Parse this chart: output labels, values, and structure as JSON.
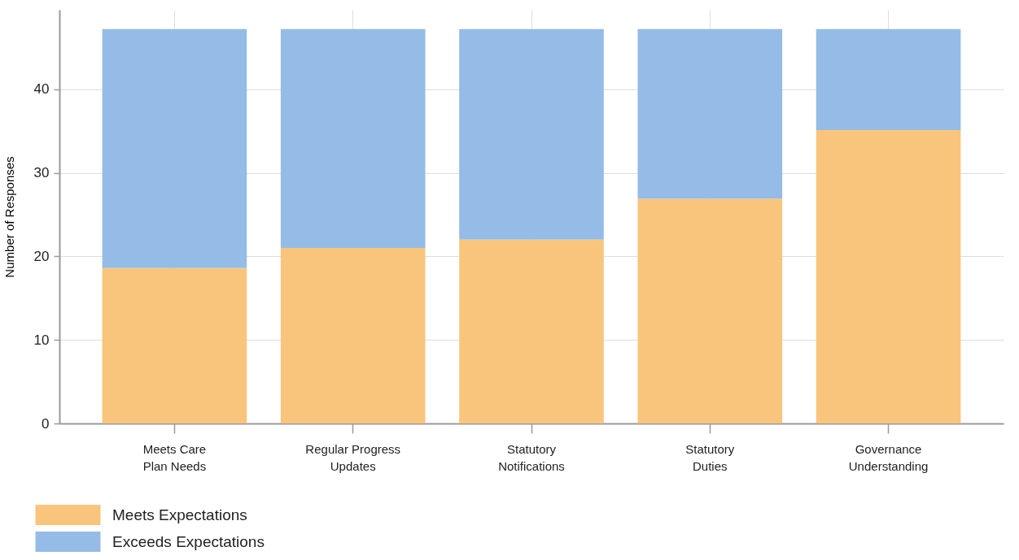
{
  "chart_data": {
    "type": "bar",
    "ylabel": "Number of Responses",
    "categories": [
      "Meets Care Plan Needs",
      "Regular Progress Updates",
      "Statutory Notifications",
      "Statutory Duties",
      "Governance Understanding"
    ],
    "series": [
      {
        "name": "Meets Expectations",
        "color": "#f9c57c",
        "values": [
          18.6,
          21,
          22,
          26.9,
          35.1
        ]
      },
      {
        "name": "Exceeds Expectations",
        "color": "#94bce6",
        "values": [
          28.6,
          26.2,
          25.2,
          20.3,
          12.1
        ]
      }
    ],
    "stacked": true,
    "ylim": [
      0,
      49.5
    ],
    "yticks": [
      0,
      10,
      20,
      30,
      40
    ],
    "grid": true,
    "legend": "bottom left"
  }
}
